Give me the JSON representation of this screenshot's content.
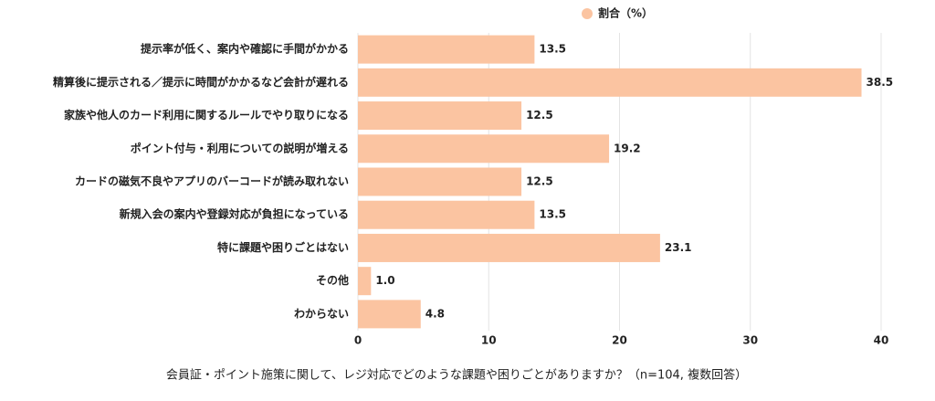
{
  "chart_data": {
    "type": "bar",
    "orientation": "horizontal",
    "title": "会員証・ポイント施策に関して、レジ対応でどのような課題や困りごとがありますか？（n=104, 複数回答）",
    "categories": [
      "提示率が低く、案内や確認に手間がかかる",
      "精算後に提示される／提示に時間がかかるなど会計が遅れる",
      "家族や他人のカード利用に関するルールでやり取りになる",
      "ポイント付与・利用についての説明が増える",
      "カードの磁気不良やアプリのバーコードが読み取れない",
      "新規入会の案内や登録対応が負担になっている",
      "特に課題や困りごとはない",
      "その他",
      "わからない"
    ],
    "series": [
      {
        "name": "割合（%）",
        "color": "#fbc4a1",
        "values": [
          13.5,
          38.5,
          12.5,
          19.2,
          12.5,
          13.5,
          23.1,
          1.0,
          4.8
        ],
        "value_labels": [
          "13.5",
          "38.5",
          "12.5",
          "19.2",
          "12.5",
          "13.5",
          "23.1",
          "1.0",
          "4.8"
        ]
      }
    ],
    "xlim": [
      0,
      40
    ],
    "xticks": [
      0,
      10,
      20,
      30,
      40
    ],
    "grid": true,
    "legend": "top"
  }
}
